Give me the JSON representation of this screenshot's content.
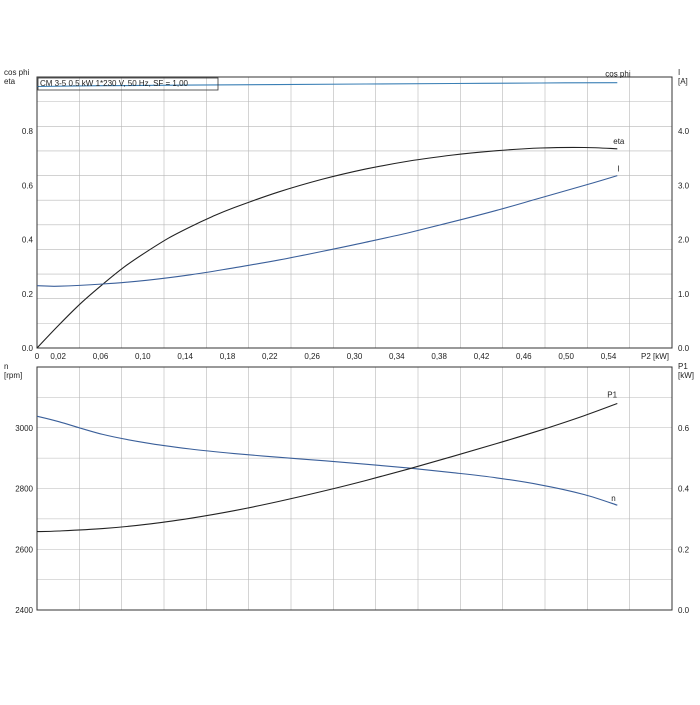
{
  "chart_data": [
    {
      "type": "line",
      "title": "CM 3-5   0.5 kW   1*230 V, 50 Hz, SF = 1,00",
      "xlabel": "P2 [kW]",
      "ylabel_left": [
        "cos phi",
        "eta"
      ],
      "ylabel_right": [
        "I",
        "[A]"
      ],
      "xlim": [
        0,
        0.58
      ],
      "ylim_left": [
        0,
        1.0
      ],
      "ylim_right": [
        0,
        5.0
      ],
      "x_ticks": [
        "0",
        "0,02",
        "0,06",
        "0,10",
        "0,14",
        "0,18",
        "0,22",
        "0,26",
        "0,30",
        "0,34",
        "0,38",
        "0,42",
        "0,46",
        "0,50",
        "0,54"
      ],
      "y_ticks_left": [
        "0.0",
        "0.2",
        "0.4",
        "0.6",
        "0.8"
      ],
      "y_ticks_right": [
        "0.0",
        "1.0",
        "2.0",
        "3.0",
        "4.0"
      ],
      "grid": true,
      "series": [
        {
          "name": "cos phi",
          "axis": "left",
          "color": "#3a7fb5",
          "x": [
            0,
            0.06,
            0.14,
            0.22,
            0.3,
            0.38,
            0.46,
            0.53
          ],
          "y": [
            0.965,
            0.968,
            0.97,
            0.972,
            0.974,
            0.976,
            0.978,
            0.979
          ]
        },
        {
          "name": "eta",
          "axis": "left",
          "color": "#222222",
          "x": [
            0,
            0.02,
            0.04,
            0.06,
            0.08,
            0.1,
            0.12,
            0.14,
            0.16,
            0.18,
            0.22,
            0.26,
            0.3,
            0.34,
            0.38,
            0.42,
            0.46,
            0.5,
            0.53
          ],
          "y": [
            0.0,
            0.085,
            0.165,
            0.235,
            0.3,
            0.355,
            0.405,
            0.447,
            0.485,
            0.518,
            0.575,
            0.622,
            0.66,
            0.69,
            0.712,
            0.728,
            0.738,
            0.74,
            0.735
          ]
        },
        {
          "name": "I",
          "axis": "right",
          "color": "#3a5f9a",
          "x": [
            0,
            0.02,
            0.06,
            0.1,
            0.14,
            0.18,
            0.22,
            0.26,
            0.3,
            0.34,
            0.38,
            0.42,
            0.46,
            0.5,
            0.53
          ],
          "y": [
            1.15,
            1.14,
            1.18,
            1.25,
            1.35,
            1.48,
            1.62,
            1.78,
            1.95,
            2.13,
            2.33,
            2.54,
            2.77,
            3.0,
            3.18
          ]
        }
      ]
    },
    {
      "type": "line",
      "xlim": [
        0,
        0.58
      ],
      "ylabel_left": [
        "n",
        "[rpm]"
      ],
      "ylabel_right": [
        "P1",
        "[kW]"
      ],
      "ylim_left": [
        2400,
        3200
      ],
      "ylim_right": [
        0,
        0.8
      ],
      "y_ticks_left": [
        "2400",
        "2600",
        "2800",
        "3000"
      ],
      "y_ticks_right": [
        "0.0",
        "0.2",
        "0.4",
        "0.6"
      ],
      "grid": true,
      "series": [
        {
          "name": "n",
          "axis": "left",
          "color": "#3a5f9a",
          "x": [
            0,
            0.02,
            0.06,
            0.1,
            0.14,
            0.18,
            0.22,
            0.26,
            0.3,
            0.34,
            0.38,
            0.42,
            0.46,
            0.5,
            0.53
          ],
          "y": [
            3038,
            3020,
            2978,
            2950,
            2930,
            2915,
            2903,
            2892,
            2880,
            2867,
            2852,
            2835,
            2812,
            2780,
            2745
          ]
        },
        {
          "name": "P1",
          "axis": "right",
          "color": "#222222",
          "x": [
            0,
            0.02,
            0.06,
            0.1,
            0.14,
            0.18,
            0.22,
            0.26,
            0.3,
            0.34,
            0.38,
            0.42,
            0.46,
            0.5,
            0.53
          ],
          "y": [
            0.258,
            0.26,
            0.268,
            0.282,
            0.302,
            0.327,
            0.357,
            0.39,
            0.426,
            0.465,
            0.506,
            0.548,
            0.592,
            0.64,
            0.68
          ]
        }
      ]
    }
  ]
}
